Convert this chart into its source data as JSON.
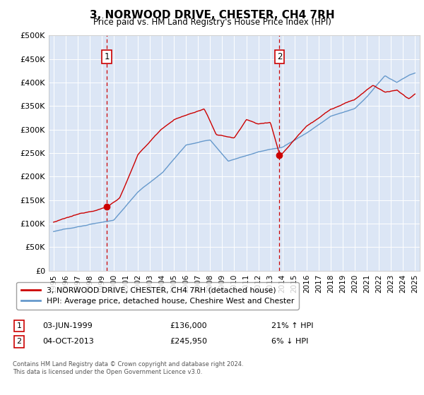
{
  "title": "3, NORWOOD DRIVE, CHESTER, CH4 7RH",
  "subtitle": "Price paid vs. HM Land Registry's House Price Index (HPI)",
  "ylim": [
    0,
    500000
  ],
  "yticks": [
    0,
    50000,
    100000,
    150000,
    200000,
    250000,
    300000,
    350000,
    400000,
    450000,
    500000
  ],
  "ytick_labels": [
    "£0",
    "£50K",
    "£100K",
    "£150K",
    "£200K",
    "£250K",
    "£300K",
    "£350K",
    "£400K",
    "£450K",
    "£500K"
  ],
  "plot_bg_color": "#dce6f5",
  "line_red_color": "#cc0000",
  "line_blue_color": "#6699cc",
  "grid_color": "#ffffff",
  "legend_label1": "3, NORWOOD DRIVE, CHESTER, CH4 7RH (detached house)",
  "legend_label2": "HPI: Average price, detached house, Cheshire West and Chester",
  "sale1_date": "03-JUN-1999",
  "sale1_price": "£136,000",
  "sale1_hpi": "21% ↑ HPI",
  "sale2_date": "04-OCT-2013",
  "sale2_price": "£245,950",
  "sale2_hpi": "6% ↓ HPI",
  "footnote": "Contains HM Land Registry data © Crown copyright and database right 2024.\nThis data is licensed under the Open Government Licence v3.0.",
  "sale1_x": 1999.42,
  "sale1_y": 136000,
  "sale2_x": 2013.75,
  "sale2_y": 245950,
  "xlim_left": 1994.6,
  "xlim_right": 2025.4
}
